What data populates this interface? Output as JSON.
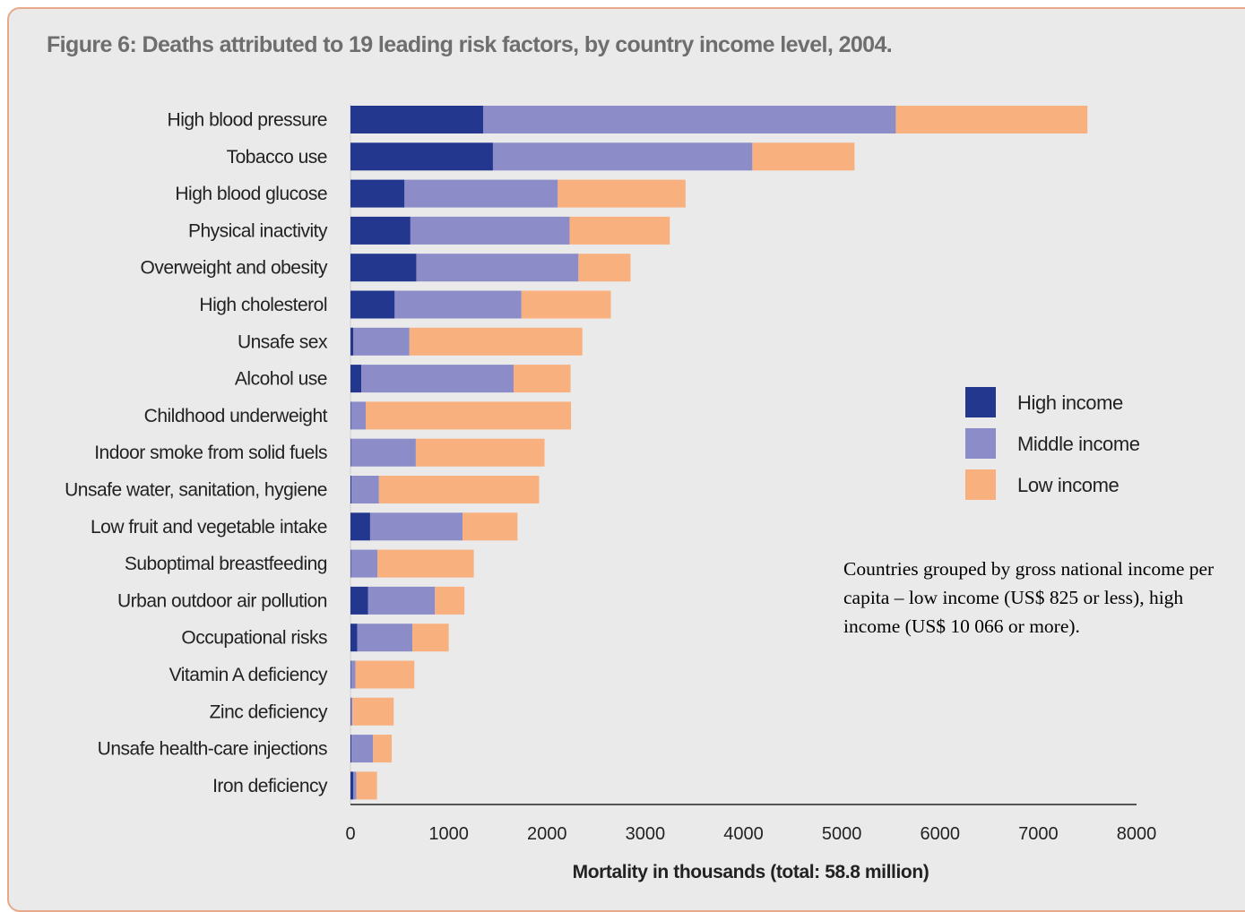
{
  "title": "Figure 6: Deaths attributed to 19 leading risk factors, by country income level, 2004.",
  "note": "Countries grouped by gross national income per capita – low income (US$ 825 or less), high income (US$ 10 066 or more).",
  "colors": {
    "high_income": "#23378f",
    "middle_income": "#8b8cc8",
    "low_income": "#f8b07f",
    "background": "#eaeaea",
    "frame": "#e8a98a"
  },
  "chart_data": {
    "type": "bar",
    "orientation": "horizontal",
    "stacked": true,
    "title": "Figure 6: Deaths attributed to 19 leading risk factors, by country income level, 2004.",
    "xlabel": "Mortality in thousands (total: 58.8 million)",
    "ylabel": "",
    "xlim": [
      0,
      8000
    ],
    "xticks": [
      0,
      1000,
      2000,
      3000,
      4000,
      5000,
      6000,
      7000,
      8000
    ],
    "grid": false,
    "legend_position": "right",
    "categories": [
      "High blood pressure",
      "Tobacco use",
      "High blood glucose",
      "Physical inactivity",
      "Overweight and obesity",
      "High cholesterol",
      "Unsafe sex",
      "Alcohol use",
      "Childhood underweight",
      "Indoor smoke from solid fuels",
      "Unsafe water, sanitation, hygiene",
      "Low fruit and vegetable intake",
      "Suboptimal breastfeeding",
      "Urban outdoor air pollution",
      "Occupational risks",
      "Vitamin A deficiency",
      "Zinc deficiency",
      "Unsafe health-care injections",
      "Iron deficiency"
    ],
    "series": [
      {
        "name": "High income",
        "color": "#23378f",
        "values": [
          1350,
          1450,
          550,
          610,
          670,
          450,
          30,
          110,
          5,
          5,
          10,
          200,
          5,
          180,
          70,
          5,
          5,
          10,
          30
        ]
      },
      {
        "name": "Middle income",
        "color": "#8b8cc8",
        "values": [
          4200,
          2640,
          1560,
          1620,
          1650,
          1290,
          570,
          1550,
          150,
          660,
          280,
          940,
          270,
          680,
          560,
          45,
          15,
          220,
          30
        ]
      },
      {
        "name": "Low income",
        "color": "#f8b07f",
        "values": [
          1950,
          1040,
          1300,
          1020,
          530,
          910,
          1760,
          580,
          2090,
          1310,
          1630,
          560,
          980,
          300,
          370,
          600,
          420,
          190,
          210
        ]
      }
    ]
  }
}
